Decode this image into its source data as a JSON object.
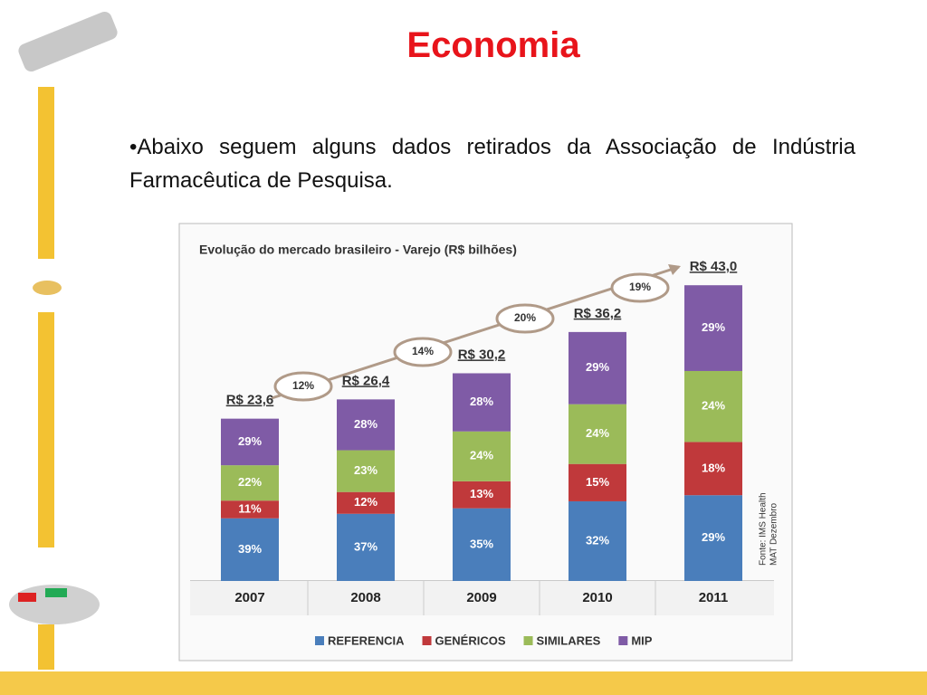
{
  "title": "Economia",
  "bullet": "•Abaixo seguem alguns dados retirados da Associação de Indústria Farmacêutica de Pesquisa.",
  "chart_data": {
    "type": "stacked_bar",
    "title": "Evolução do mercado brasileiro - Varejo (R$ bilhões)",
    "categories": [
      "2007",
      "2008",
      "2009",
      "2010",
      "2011"
    ],
    "series": [
      {
        "name": "REFERENCIA",
        "color": "#4a7ebb",
        "values": [
          39,
          37,
          35,
          32,
          29
        ],
        "value_labels": [
          "39%",
          "37%",
          "35%",
          "32%",
          "29%"
        ]
      },
      {
        "name": "GENÉRICOS",
        "color": "#c0393b",
        "values": [
          11,
          12,
          13,
          15,
          18
        ],
        "value_labels": [
          "11%",
          "12%",
          "13%",
          "15%",
          "18%"
        ]
      },
      {
        "name": "SIMILARES",
        "color": "#9bbb59",
        "values": [
          22,
          23,
          24,
          24,
          24
        ],
        "value_labels": [
          "22%",
          "23%",
          "24%",
          "24%",
          "24%"
        ]
      },
      {
        "name": "MIP",
        "color": "#7f5ba6",
        "values": [
          29,
          28,
          28,
          29,
          29
        ],
        "value_labels": [
          "29%",
          "28%",
          "28%",
          "29%",
          "29%"
        ]
      }
    ],
    "totals": {
      "values": [
        23.6,
        26.4,
        30.2,
        36.2,
        43.0
      ],
      "value_labels": [
        "R$ 23,6",
        "R$ 26,4",
        "R$ 30,2",
        "R$ 36,2",
        "R$ 43,0"
      ]
    },
    "growth": {
      "values": [
        12,
        14,
        20,
        19
      ],
      "value_labels": [
        "12%",
        "14%",
        "20%",
        "19%"
      ]
    },
    "source": [
      "Fonte: IMS Health",
      "MAT Dezembro"
    ]
  }
}
